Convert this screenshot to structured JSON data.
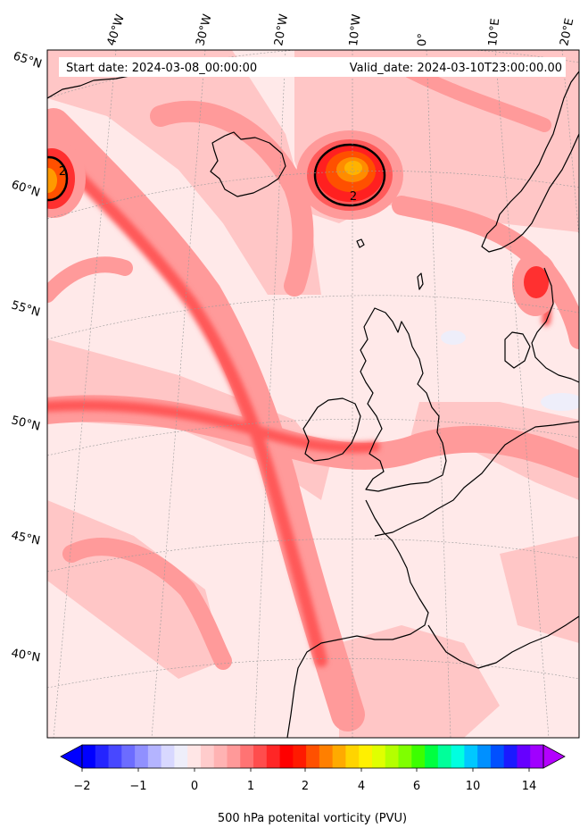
{
  "header": {
    "start_date": "Start date: 2024-03-08_00:00:00",
    "valid_date": "Valid_date: 2024-03-10T23:00:00.00"
  },
  "map": {
    "projection": "conic",
    "contour_label": "2",
    "longitude_labels": [
      "40°W",
      "30°W",
      "20°W",
      "10°W",
      "0°",
      "10°E",
      "20°E"
    ],
    "latitude_labels": [
      "65°N",
      "60°N",
      "55°N",
      "50°N",
      "45°N",
      "40°N"
    ],
    "colors": {
      "pv_low": "#ffe6e6",
      "pv_mid": "#ff9a9a",
      "pv_high": "#ff4040",
      "pv_core": "#ff8c00",
      "pv_peak": "#ffbf00",
      "coastline": "#000000",
      "gridline": "#9a9a9a"
    }
  },
  "colorbar": {
    "label": "500 hPa potenital vorticity (PVU)",
    "tick_labels": [
      "−2",
      "−1",
      "0",
      "1",
      "2",
      "4",
      "6",
      "10",
      "14"
    ],
    "colors": [
      "#0000ff",
      "#2424ff",
      "#4848ff",
      "#6c6cff",
      "#9090ff",
      "#b4b4ff",
      "#d8d8ff",
      "#eeeefa",
      "#ffe6e6",
      "#ffcccc",
      "#ffb3b3",
      "#ff9999",
      "#ff7373",
      "#ff4d4d",
      "#ff2626",
      "#ff0000",
      "#ff1a00",
      "#ff5000",
      "#ff7f00",
      "#ffaa00",
      "#ffd400",
      "#fff000",
      "#e0ff00",
      "#b4ff00",
      "#7fff00",
      "#3cff00",
      "#00ff40",
      "#00ff9a",
      "#00ffe0",
      "#00c8ff",
      "#0090ff",
      "#0050ff",
      "#1a1aff",
      "#6600ff",
      "#a000ff"
    ],
    "extend_low_color": "#0000ff",
    "extend_high_color": "#b400ff"
  }
}
